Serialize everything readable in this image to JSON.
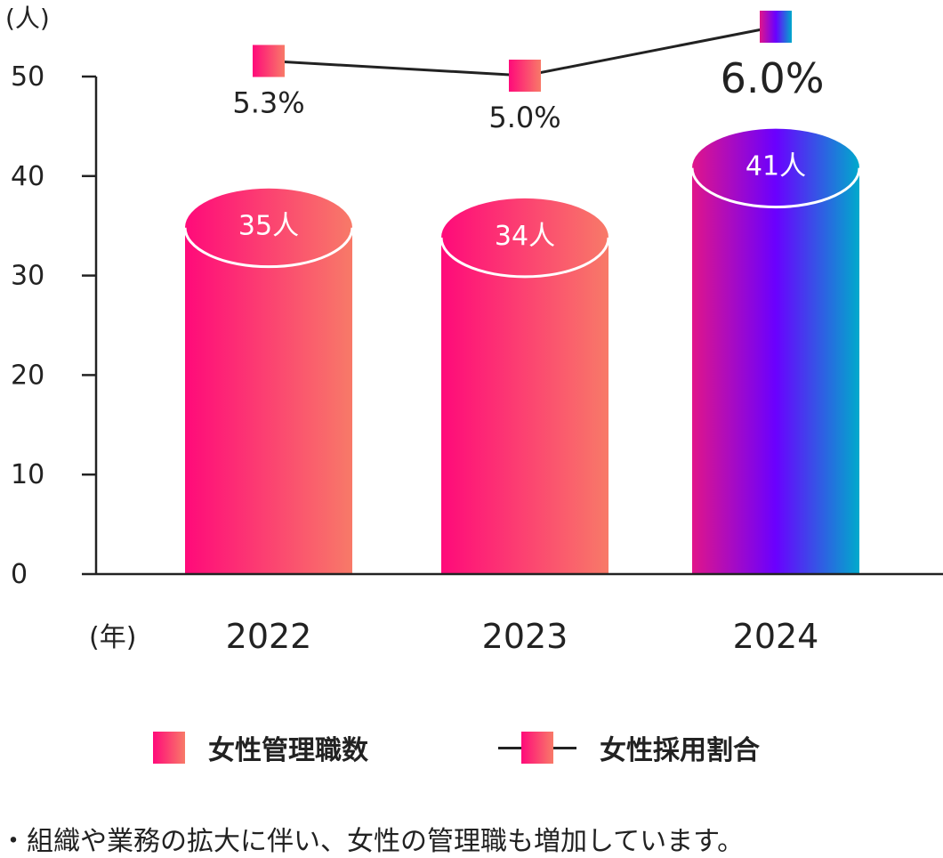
{
  "chart_data": {
    "type": "bar",
    "y_unit": "(人)",
    "x_unit": "(年)",
    "ylim": [
      0,
      50
    ],
    "yticks": [
      "0",
      "10",
      "20",
      "30",
      "40",
      "50"
    ],
    "categories": [
      "2022",
      "2023",
      "2024"
    ],
    "series": [
      {
        "name": "女性管理職数",
        "type": "bar",
        "values": [
          35,
          34,
          41
        ],
        "labels": [
          "35人",
          "34人",
          "41人"
        ]
      },
      {
        "name": "女性採用割合",
        "type": "line",
        "values": [
          5.3,
          5.0,
          6.0
        ],
        "labels": [
          "5.3%",
          "5.0%",
          "6.0%"
        ]
      }
    ]
  },
  "colors": {
    "bar_start": "#ff0a7a",
    "bar_end": "#f87a68",
    "highlight_start": "#e0158a",
    "highlight_mid": "#6a00ff",
    "highlight_end": "#00aacc",
    "axis": "#222222"
  },
  "footnote": "・組織や業務の拡大に伴い、女性の管理職も増加しています。"
}
